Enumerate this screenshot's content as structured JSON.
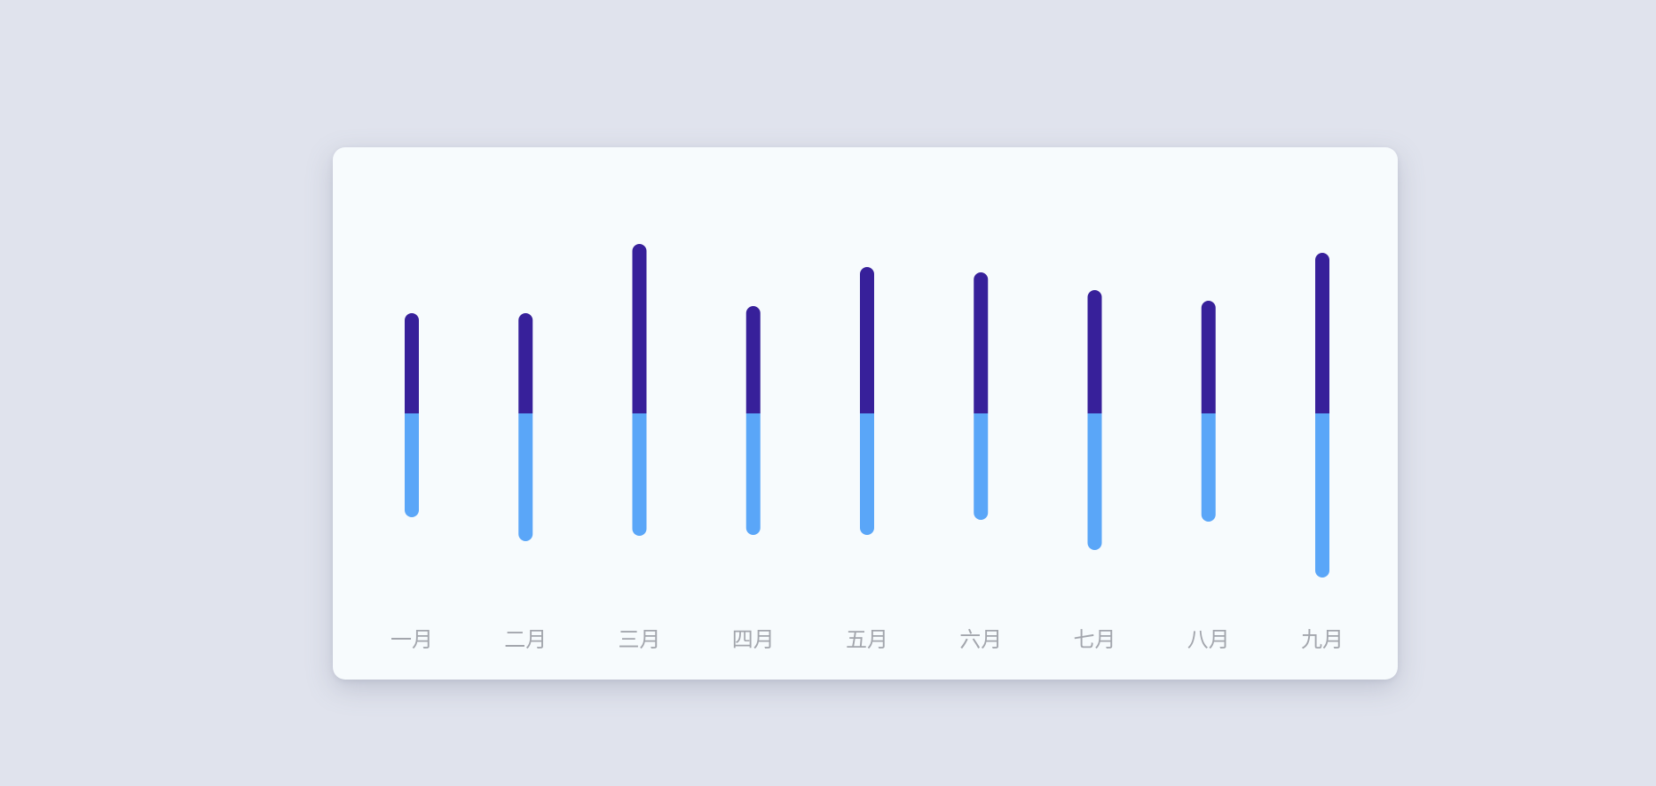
{
  "chart_data": {
    "type": "bar",
    "subtype": "diverging-stacked",
    "categories": [
      "一月",
      "二月",
      "三月",
      "四月",
      "五月",
      "六月",
      "七月",
      "八月",
      "九月"
    ],
    "series": [
      {
        "values": [
          113,
          113,
          191,
          121,
          165,
          159,
          139,
          127,
          181
        ]
      },
      {
        "values": [
          -117,
          -144,
          -138,
          -137,
          -137,
          -120,
          -154,
          -122,
          -185
        ]
      }
    ],
    "ylim": [
      -200,
      200
    ],
    "grid": false,
    "colors": {
      "positive": "#37209a",
      "negative": "#5aa6f8",
      "tick_label": "#a3a6ad",
      "card": "#f7fbfd",
      "background": "#e0e3ed"
    }
  }
}
